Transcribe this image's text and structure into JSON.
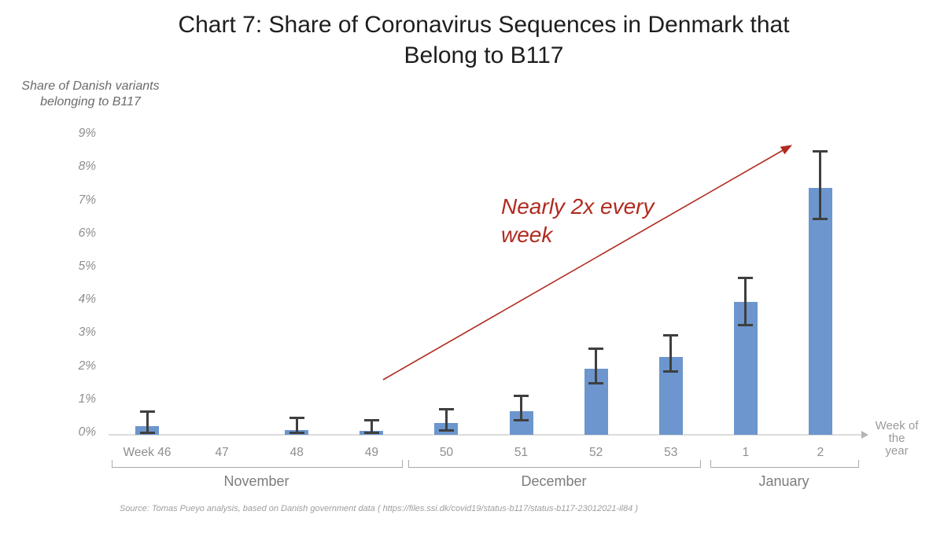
{
  "header": {
    "title_line1": "Chart 7: Share of Coronavirus Sequences in Denmark that",
    "title_line2": "Belong to B117"
  },
  "axes": {
    "y_label_line1": "Share of Danish variants",
    "y_label_line2": "belonging to B117",
    "x_label_line1": "Week of the",
    "x_label_line2": "year",
    "y_tick_labels": [
      "9%",
      "8%",
      "7%",
      "6%",
      "5%",
      "4%",
      "3%",
      "2%",
      "1%",
      "0%"
    ]
  },
  "annotation": {
    "line1": "Nearly 2x every",
    "line2": "week"
  },
  "source": "Source: Tomas Pueyo analysis, based on Danish government data ( https://files.ssi.dk/covid19/status-b117/status-b117-23012021-il84 )",
  "colors": {
    "bar_blue": "#6c96cd",
    "error_bar": "#3f3f3f",
    "accent_red": "#b02b20",
    "axis_gray": "#dcdcdc",
    "tick_text_gray": "#8e8e8e"
  },
  "chart_data": {
    "type": "bar",
    "title": "Chart 7: Share of Coronavirus Sequences in Denmark that Belong to B117",
    "ylabel": "Share of Danish variants belonging to B117",
    "xlabel": "Week of the year",
    "categories": [
      "Week 46",
      "47",
      "48",
      "49",
      "50",
      "51",
      "52",
      "53",
      "1",
      "2"
    ],
    "values": [
      0.25,
      0,
      0.15,
      0.12,
      0.35,
      0.72,
      2.0,
      2.35,
      4.0,
      7.45
    ],
    "error_low": [
      0.05,
      null,
      0.05,
      0.05,
      0.12,
      0.43,
      1.55,
      1.9,
      3.3,
      6.5
    ],
    "error_high": [
      0.72,
      null,
      0.52,
      0.45,
      0.78,
      1.18,
      2.6,
      3.0,
      4.75,
      8.55
    ],
    "value_unit": "%",
    "ylim": [
      0,
      9
    ],
    "y_tick_step": 1,
    "grid": false,
    "legend": "none",
    "month_groups": [
      {
        "label": "November",
        "weeks": [
          "Week 46",
          "47",
          "48",
          "49"
        ]
      },
      {
        "label": "December",
        "weeks": [
          "50",
          "51",
          "52",
          "53"
        ]
      },
      {
        "label": "January",
        "weeks": [
          "1",
          "2"
        ]
      }
    ],
    "annotation_text": "Nearly 2x every week"
  }
}
